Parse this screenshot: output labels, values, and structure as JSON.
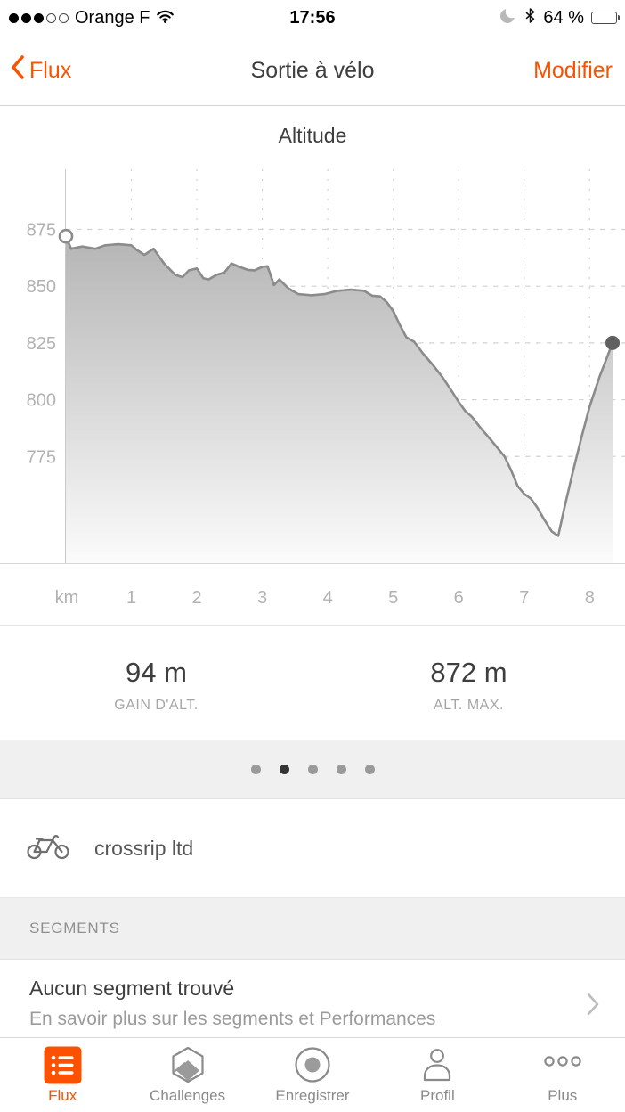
{
  "colors": {
    "accent": "#FC5200",
    "chart_line": "#8b8b8b",
    "chart_fill_top": "#a6a6a6",
    "chart_fill_bottom": "#fbfbfb",
    "grid": "#d2d2d2",
    "axis_label": "#b2b2b2",
    "end_dot": "#606060",
    "active_page_dot": "#343434",
    "inactive_page_dot": "#9a9a9a"
  },
  "status_bar": {
    "carrier": "Orange F",
    "signal": {
      "filled": 3,
      "total": 5
    },
    "time": "17:56",
    "battery_label": "64 %",
    "battery_fill_percent": 64,
    "icons": [
      "wifi-icon",
      "moon-icon",
      "bluetooth-icon",
      "battery-icon"
    ]
  },
  "nav": {
    "back_label": "Flux",
    "title": "Sortie à vélo",
    "action_label": "Modifier"
  },
  "chart_data": {
    "type": "area",
    "title": "Altitude",
    "x_unit_label": "km",
    "x_ticks": [
      1,
      2,
      3,
      4,
      5,
      6,
      7,
      8
    ],
    "y_ticks": [
      875,
      850,
      825,
      800,
      775
    ],
    "xlim": [
      0,
      8.54
    ],
    "ylim": [
      728,
      901.5
    ],
    "grid": "dashed",
    "start_marker": "open-circle",
    "end_marker": "filled-circle",
    "series": [
      {
        "name": "altitude_m",
        "points": [
          [
            0,
            872
          ],
          [
            0.08,
            866.5
          ],
          [
            0.25,
            867.5
          ],
          [
            0.45,
            866.5
          ],
          [
            0.6,
            868
          ],
          [
            0.8,
            868.5
          ],
          [
            1.0,
            868
          ],
          [
            1.08,
            866
          ],
          [
            1.2,
            863.8
          ],
          [
            1.34,
            866.5
          ],
          [
            1.5,
            860
          ],
          [
            1.67,
            855
          ],
          [
            1.78,
            854
          ],
          [
            1.88,
            857
          ],
          [
            2.0,
            857.8
          ],
          [
            2.1,
            853.5
          ],
          [
            2.18,
            853
          ],
          [
            2.3,
            855
          ],
          [
            2.42,
            856
          ],
          [
            2.53,
            860
          ],
          [
            2.65,
            858.5
          ],
          [
            2.78,
            857.2
          ],
          [
            2.88,
            857
          ],
          [
            3.0,
            858.5
          ],
          [
            3.08,
            858.8
          ],
          [
            3.18,
            850.5
          ],
          [
            3.26,
            853
          ],
          [
            3.4,
            849
          ],
          [
            3.55,
            846.5
          ],
          [
            3.75,
            846
          ],
          [
            3.95,
            846.5
          ],
          [
            4.15,
            848
          ],
          [
            4.35,
            848.5
          ],
          [
            4.55,
            848
          ],
          [
            4.68,
            845.8
          ],
          [
            4.8,
            845.5
          ],
          [
            4.9,
            843
          ],
          [
            5.0,
            839
          ],
          [
            5.1,
            833
          ],
          [
            5.2,
            827.5
          ],
          [
            5.32,
            825.5
          ],
          [
            5.45,
            820.5
          ],
          [
            5.6,
            815.5
          ],
          [
            5.75,
            810
          ],
          [
            5.9,
            803.5
          ],
          [
            6.0,
            799
          ],
          [
            6.1,
            795
          ],
          [
            6.2,
            792.5
          ],
          [
            6.35,
            787
          ],
          [
            6.5,
            782
          ],
          [
            6.6,
            778.5
          ],
          [
            6.7,
            775
          ],
          [
            6.8,
            769
          ],
          [
            6.9,
            762
          ],
          [
            7.0,
            758.5
          ],
          [
            7.1,
            756.5
          ],
          [
            7.2,
            752.5
          ],
          [
            7.3,
            747.5
          ],
          [
            7.42,
            742
          ],
          [
            7.52,
            740
          ],
          [
            7.62,
            753
          ],
          [
            7.75,
            769
          ],
          [
            7.88,
            784
          ],
          [
            8.0,
            797
          ],
          [
            8.15,
            810
          ],
          [
            8.35,
            825
          ]
        ]
      }
    ]
  },
  "stats": [
    {
      "value": "94 m",
      "label": "GAIN D'ALT."
    },
    {
      "value": "872 m",
      "label": "ALT. MAX."
    }
  ],
  "page_dots": {
    "count": 5,
    "active_index": 1
  },
  "gear": {
    "name": "crossrip ltd"
  },
  "segments": {
    "header": "SEGMENTS",
    "title": "Aucun segment trouvé",
    "subtitle": "En savoir plus sur les segments et Performances"
  },
  "tab_bar": [
    {
      "label": "Flux",
      "active": true
    },
    {
      "label": "Challenges",
      "active": false
    },
    {
      "label": "Enregistrer",
      "active": false
    },
    {
      "label": "Profil",
      "active": false
    },
    {
      "label": "Plus",
      "active": false
    }
  ]
}
